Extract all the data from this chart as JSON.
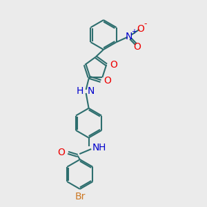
{
  "bg_color": "#ebebeb",
  "bond_color": "#2d6e6e",
  "nitrogen_color": "#0000cc",
  "oxygen_color": "#ee0000",
  "bromine_color": "#cc7722",
  "lw": 1.5,
  "dbo": 0.07,
  "figsize": [
    3.0,
    3.0
  ],
  "dpi": 100,
  "xlim": [
    0,
    10
  ],
  "ylim": [
    0,
    10
  ]
}
